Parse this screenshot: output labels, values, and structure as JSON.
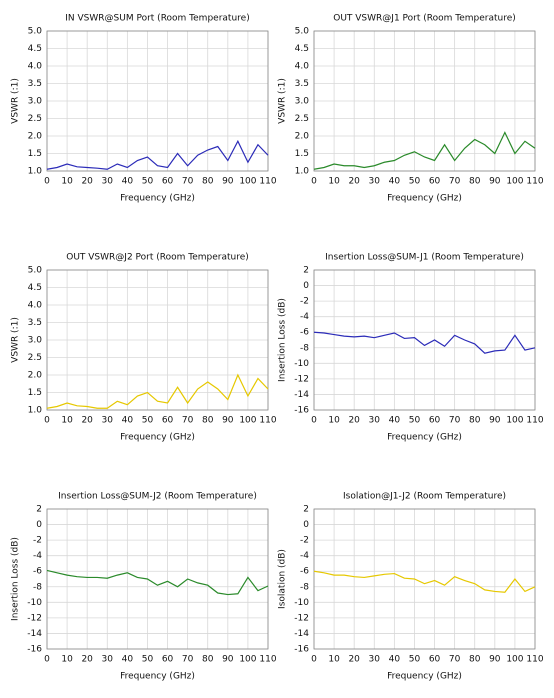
{
  "chart_data": [
    {
      "type": "line",
      "title": "IN VSWR@SUM Port (Room Temperature)",
      "x_label": "Frequency (GHz)",
      "y_label": "VSWR (:1)",
      "x": [
        0,
        5,
        10,
        15,
        20,
        25,
        30,
        35,
        40,
        45,
        50,
        55,
        60,
        65,
        70,
        75,
        80,
        85,
        90,
        95,
        100,
        105,
        110
      ],
      "series": [
        {
          "color": "#2b2bb8",
          "values": [
            1.05,
            1.1,
            1.2,
            1.12,
            1.1,
            1.08,
            1.05,
            1.2,
            1.1,
            1.3,
            1.4,
            1.15,
            1.1,
            1.5,
            1.15,
            1.45,
            1.6,
            1.7,
            1.3,
            1.85,
            1.25,
            1.75,
            1.45
          ]
        }
      ],
      "xlim": [
        0,
        110
      ],
      "xticks": [
        0,
        10,
        20,
        30,
        40,
        50,
        60,
        70,
        80,
        90,
        100,
        110
      ],
      "ylim": [
        1,
        5
      ],
      "yticks": [
        {
          "value": 1,
          "label": "1.0"
        },
        {
          "value": 1.5,
          "label": "1.5"
        },
        {
          "value": 2,
          "label": "2.0"
        },
        {
          "value": 2.5,
          "label": "2.5"
        },
        {
          "value": 3,
          "label": "3.0"
        },
        {
          "value": 3.5,
          "label": "3.5"
        },
        {
          "value": 4,
          "label": "4.0"
        },
        {
          "value": 4.5,
          "label": "4.5"
        },
        {
          "value": 5,
          "label": "5.0"
        }
      ],
      "grid": true
    },
    {
      "type": "line",
      "title": "OUT VSWR@J1 Port (Room Temperature)",
      "x_label": "Frequency (GHz)",
      "y_label": "VSWR (:1)",
      "x": [
        0,
        5,
        10,
        15,
        20,
        25,
        30,
        35,
        40,
        45,
        50,
        55,
        60,
        65,
        70,
        75,
        80,
        85,
        90,
        95,
        100,
        105,
        110
      ],
      "series": [
        {
          "color": "#2a8a2a",
          "values": [
            1.05,
            1.1,
            1.2,
            1.15,
            1.15,
            1.1,
            1.15,
            1.25,
            1.3,
            1.45,
            1.55,
            1.4,
            1.3,
            1.75,
            1.3,
            1.65,
            1.9,
            1.75,
            1.5,
            2.1,
            1.5,
            1.85,
            1.65
          ]
        }
      ],
      "xlim": [
        0,
        110
      ],
      "xticks": [
        0,
        10,
        20,
        30,
        40,
        50,
        60,
        70,
        80,
        90,
        100,
        110
      ],
      "ylim": [
        1,
        5
      ],
      "yticks": [
        {
          "value": 1,
          "label": "1.0"
        },
        {
          "value": 1.5,
          "label": "1.5"
        },
        {
          "value": 2,
          "label": "2.0"
        },
        {
          "value": 2.5,
          "label": "2.5"
        },
        {
          "value": 3,
          "label": "3.0"
        },
        {
          "value": 3.5,
          "label": "3.5"
        },
        {
          "value": 4,
          "label": "4.0"
        },
        {
          "value": 4.5,
          "label": "4.5"
        },
        {
          "value": 5,
          "label": "5.0"
        }
      ],
      "grid": true
    },
    {
      "type": "line",
      "title": "OUT VSWR@J2 Port (Room Temperature)",
      "x_label": "Frequency (GHz)",
      "y_label": "VSWR (:1)",
      "x": [
        0,
        5,
        10,
        15,
        20,
        25,
        30,
        35,
        40,
        45,
        50,
        55,
        60,
        65,
        70,
        75,
        80,
        85,
        90,
        95,
        100,
        105,
        110
      ],
      "series": [
        {
          "color": "#e6c800",
          "values": [
            1.05,
            1.1,
            1.2,
            1.12,
            1.1,
            1.05,
            1.05,
            1.25,
            1.15,
            1.4,
            1.5,
            1.25,
            1.2,
            1.65,
            1.2,
            1.6,
            1.8,
            1.6,
            1.3,
            2.0,
            1.4,
            1.9,
            1.6
          ]
        }
      ],
      "xlim": [
        0,
        110
      ],
      "xticks": [
        0,
        10,
        20,
        30,
        40,
        50,
        60,
        70,
        80,
        90,
        100,
        110
      ],
      "ylim": [
        1,
        5
      ],
      "yticks": [
        {
          "value": 1,
          "label": "1.0"
        },
        {
          "value": 1.5,
          "label": "1.5"
        },
        {
          "value": 2,
          "label": "2.0"
        },
        {
          "value": 2.5,
          "label": "2.5"
        },
        {
          "value": 3,
          "label": "3.0"
        },
        {
          "value": 3.5,
          "label": "3.5"
        },
        {
          "value": 4,
          "label": "4.0"
        },
        {
          "value": 4.5,
          "label": "4.5"
        },
        {
          "value": 5,
          "label": "5.0"
        }
      ],
      "grid": true
    },
    {
      "type": "line",
      "title": "Insertion Loss@SUM-J1 (Room Temperature)",
      "x_label": "Frequency (GHz)",
      "y_label": "Insertion Loss (dB)",
      "x": [
        0,
        5,
        10,
        15,
        20,
        25,
        30,
        35,
        40,
        45,
        50,
        55,
        60,
        65,
        70,
        75,
        80,
        85,
        90,
        95,
        100,
        105,
        110
      ],
      "series": [
        {
          "color": "#2b2bb8",
          "values": [
            -6,
            -6.1,
            -6.3,
            -6.5,
            -6.6,
            -6.5,
            -6.7,
            -6.4,
            -6.1,
            -6.8,
            -6.7,
            -7.7,
            -7,
            -7.8,
            -6.4,
            -7,
            -7.5,
            -8.7,
            -8.4,
            -8.3,
            -6.4,
            -8.3,
            -8
          ]
        }
      ],
      "xlim": [
        0,
        110
      ],
      "xticks": [
        0,
        10,
        20,
        30,
        40,
        50,
        60,
        70,
        80,
        90,
        100,
        110
      ],
      "ylim": [
        -16,
        2
      ],
      "yticks": [
        -16,
        -14,
        -12,
        -10,
        -8,
        -6,
        -4,
        -2,
        0,
        2
      ],
      "grid": true
    },
    {
      "type": "line",
      "title": "Insertion Loss@SUM-J2 (Room Temperature)",
      "x_label": "Frequency (GHz)",
      "y_label": "Insertion Loss (dB)",
      "x": [
        0,
        5,
        10,
        15,
        20,
        25,
        30,
        35,
        40,
        45,
        50,
        55,
        60,
        65,
        70,
        75,
        80,
        85,
        90,
        95,
        100,
        105,
        110
      ],
      "series": [
        {
          "color": "#2a8a2a",
          "values": [
            -5.9,
            -6.2,
            -6.5,
            -6.7,
            -6.8,
            -6.8,
            -6.9,
            -6.5,
            -6.2,
            -6.8,
            -7,
            -7.8,
            -7.3,
            -8,
            -7,
            -7.5,
            -7.8,
            -8.8,
            -9,
            -8.9,
            -6.8,
            -8.5,
            -7.9
          ]
        }
      ],
      "xlim": [
        0,
        110
      ],
      "xticks": [
        0,
        10,
        20,
        30,
        40,
        50,
        60,
        70,
        80,
        90,
        100,
        110
      ],
      "ylim": [
        -16,
        2
      ],
      "yticks": [
        -16,
        -14,
        -12,
        -10,
        -8,
        -6,
        -4,
        -2,
        0,
        2
      ],
      "grid": true
    },
    {
      "type": "line",
      "title": "Isolation@J1-J2 (Room Temperature)",
      "x_label": "Frequency (GHz)",
      "y_label": "Isolation (dB)",
      "x": [
        0,
        5,
        10,
        15,
        20,
        25,
        30,
        35,
        40,
        45,
        50,
        55,
        60,
        65,
        70,
        75,
        80,
        85,
        90,
        95,
        100,
        105,
        110
      ],
      "series": [
        {
          "color": "#e6c800",
          "values": [
            -6,
            -6.2,
            -6.5,
            -6.5,
            -6.7,
            -6.8,
            -6.6,
            -6.4,
            -6.3,
            -6.9,
            -7,
            -7.6,
            -7.2,
            -7.8,
            -6.7,
            -7.2,
            -7.6,
            -8.4,
            -8.6,
            -8.7,
            -7,
            -8.6,
            -8
          ]
        }
      ],
      "xlim": [
        0,
        110
      ],
      "xticks": [
        0,
        10,
        20,
        30,
        40,
        50,
        60,
        70,
        80,
        90,
        100,
        110
      ],
      "ylim": [
        -16,
        2
      ],
      "yticks": [
        -16,
        -14,
        -12,
        -10,
        -8,
        -6,
        -4,
        -2,
        0,
        2
      ],
      "grid": true
    }
  ]
}
